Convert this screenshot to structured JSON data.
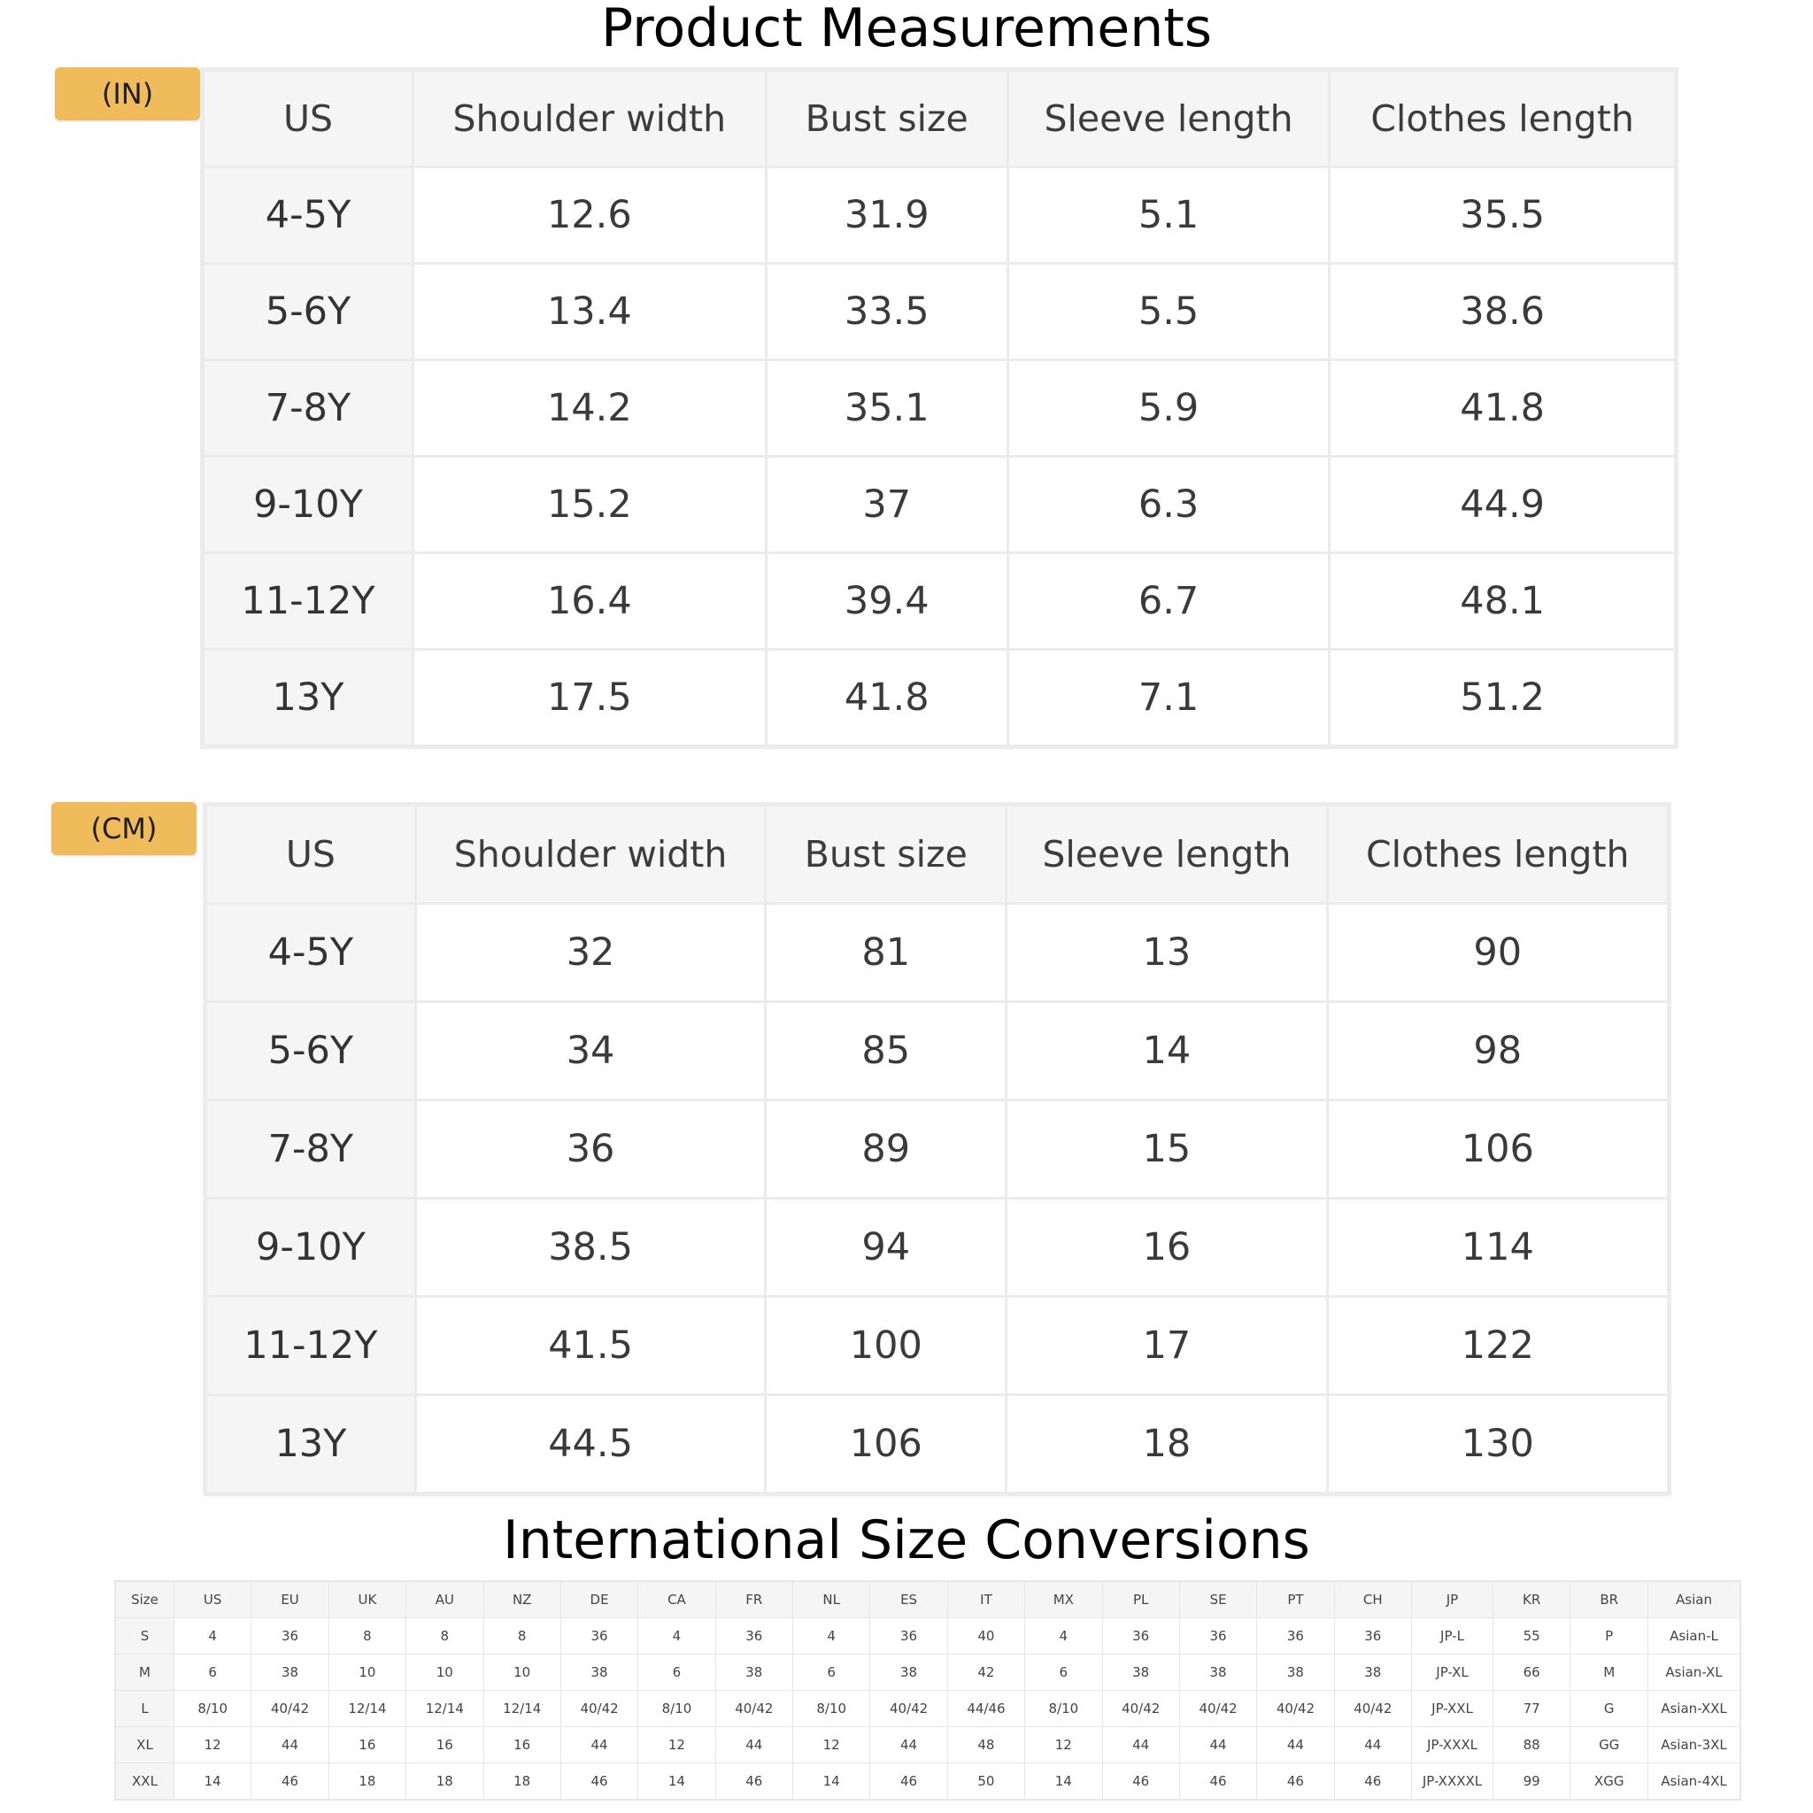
{
  "titles": {
    "main": "Product Measurements",
    "international": "International Size Conversions"
  },
  "colors": {
    "badge": "#f0bb5b",
    "header_bg": "#f5f5f5",
    "grid": "#ebebeb"
  },
  "inch_table": {
    "unit_label": "(IN)",
    "headers": [
      "US",
      "Shoulder width",
      "Bust size",
      "Sleeve length",
      "Clothes length"
    ],
    "rows": [
      [
        "4-5Y",
        "12.6",
        "31.9",
        "5.1",
        "35.5"
      ],
      [
        "5-6Y",
        "13.4",
        "33.5",
        "5.5",
        "38.6"
      ],
      [
        "7-8Y",
        "14.2",
        "35.1",
        "5.9",
        "41.8"
      ],
      [
        "9-10Y",
        "15.2",
        "37",
        "6.3",
        "44.9"
      ],
      [
        "11-12Y",
        "16.4",
        "39.4",
        "6.7",
        "48.1"
      ],
      [
        "13Y",
        "17.5",
        "41.8",
        "7.1",
        "51.2"
      ]
    ]
  },
  "cm_table": {
    "unit_label": "(CM)",
    "headers": [
      "US",
      "Shoulder width",
      "Bust size",
      "Sleeve length",
      "Clothes length"
    ],
    "rows": [
      [
        "4-5Y",
        "32",
        "81",
        "13",
        "90"
      ],
      [
        "5-6Y",
        "34",
        "85",
        "14",
        "98"
      ],
      [
        "7-8Y",
        "36",
        "89",
        "15",
        "106"
      ],
      [
        "9-10Y",
        "38.5",
        "94",
        "16",
        "114"
      ],
      [
        "11-12Y",
        "41.5",
        "100",
        "17",
        "122"
      ],
      [
        "13Y",
        "44.5",
        "106",
        "18",
        "130"
      ]
    ]
  },
  "international_table": {
    "headers": [
      "Size",
      "US",
      "EU",
      "UK",
      "AU",
      "NZ",
      "DE",
      "CA",
      "FR",
      "NL",
      "ES",
      "IT",
      "MX",
      "PL",
      "SE",
      "PT",
      "CH",
      "JP",
      "KR",
      "BR",
      "Asian"
    ],
    "rows": [
      [
        "S",
        "4",
        "36",
        "8",
        "8",
        "8",
        "36",
        "4",
        "36",
        "4",
        "36",
        "40",
        "4",
        "36",
        "36",
        "36",
        "36",
        "JP-L",
        "55",
        "P",
        "Asian-L"
      ],
      [
        "M",
        "6",
        "38",
        "10",
        "10",
        "10",
        "38",
        "6",
        "38",
        "6",
        "38",
        "42",
        "6",
        "38",
        "38",
        "38",
        "38",
        "JP-XL",
        "66",
        "M",
        "Asian-XL"
      ],
      [
        "L",
        "8/10",
        "40/42",
        "12/14",
        "12/14",
        "12/14",
        "40/42",
        "8/10",
        "40/42",
        "8/10",
        "40/42",
        "44/46",
        "8/10",
        "40/42",
        "40/42",
        "40/42",
        "40/42",
        "JP-XXL",
        "77",
        "G",
        "Asian-XXL"
      ],
      [
        "XL",
        "12",
        "44",
        "16",
        "16",
        "16",
        "44",
        "12",
        "44",
        "12",
        "44",
        "48",
        "12",
        "44",
        "44",
        "44",
        "44",
        "JP-XXXL",
        "88",
        "GG",
        "Asian-3XL"
      ],
      [
        "XXL",
        "14",
        "46",
        "18",
        "18",
        "18",
        "46",
        "14",
        "46",
        "14",
        "46",
        "50",
        "14",
        "46",
        "46",
        "46",
        "46",
        "JP-XXXXL",
        "99",
        "XGG",
        "Asian-4XL"
      ]
    ]
  }
}
